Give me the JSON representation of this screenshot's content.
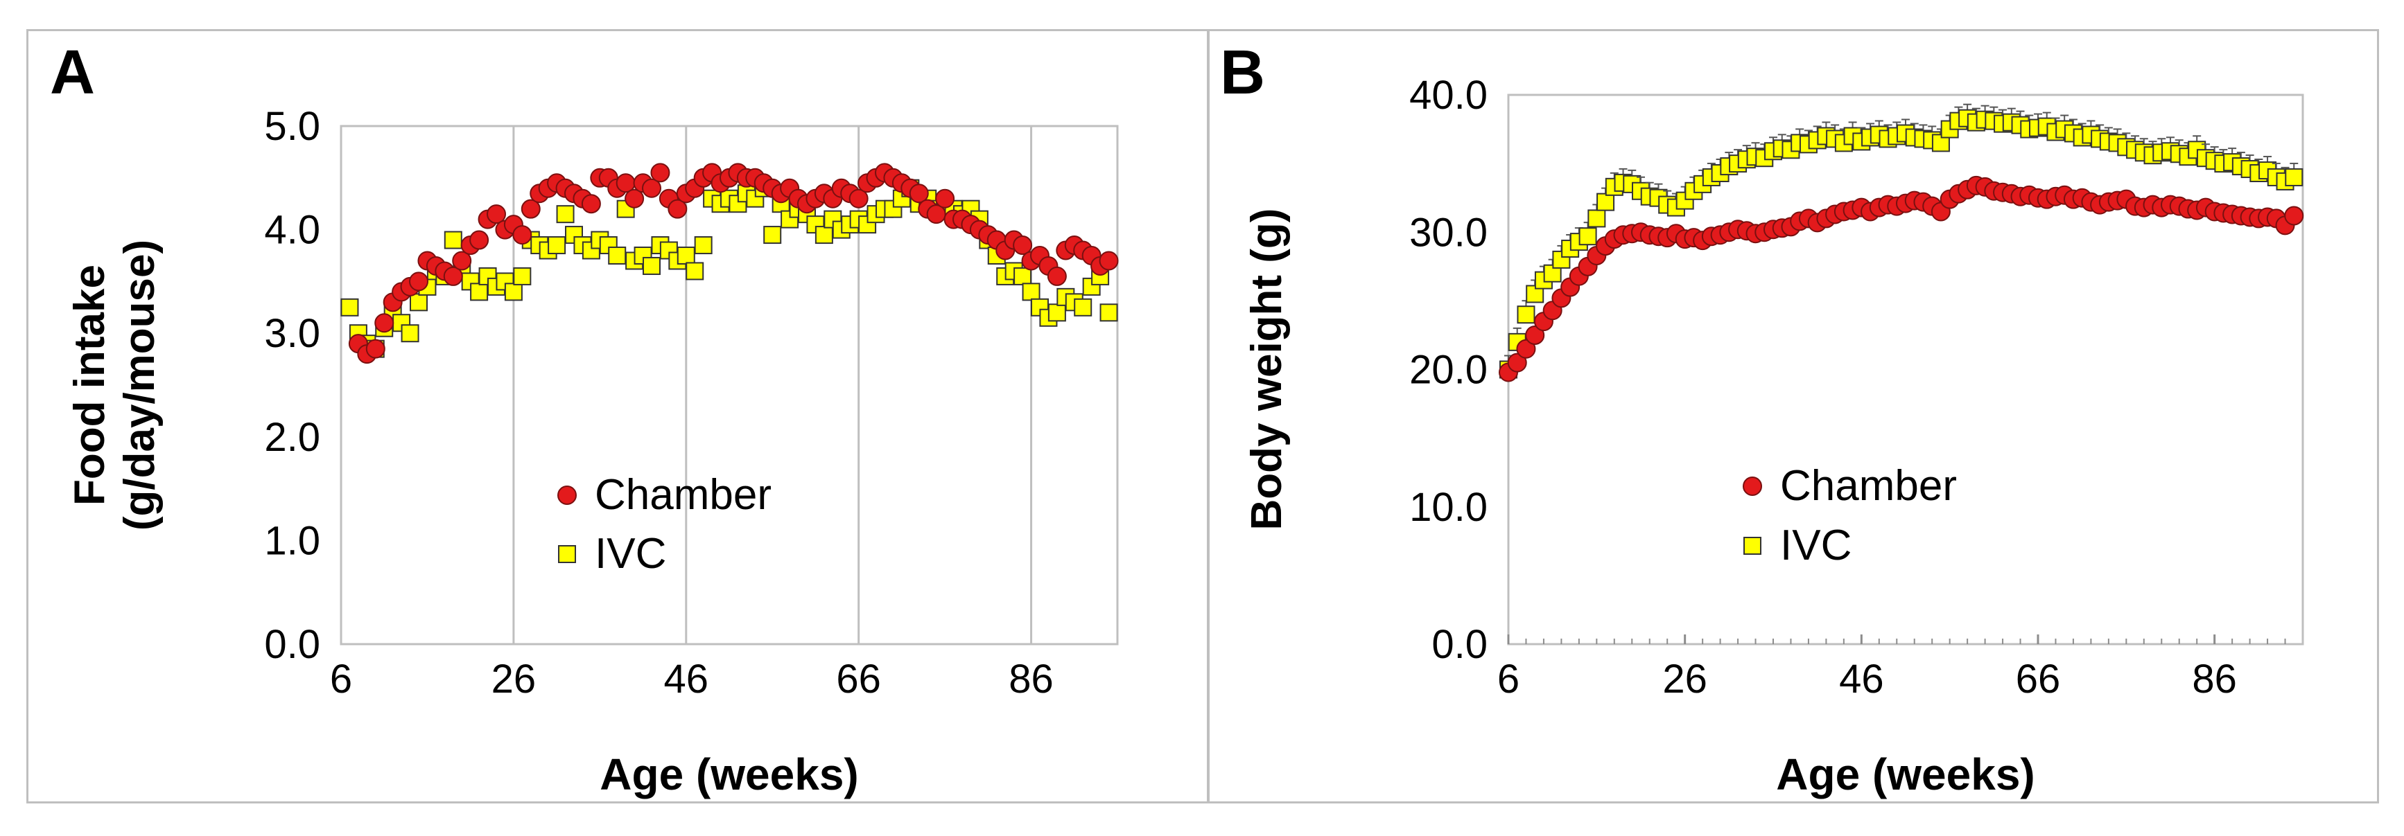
{
  "chart_data": [
    {
      "type": "scatter",
      "panel_label": "A",
      "xlabel": "Age (weeks)",
      "ylabel_line1": "Food intake",
      "ylabel_line2": "(g/day/mouse)",
      "xlim": [
        6,
        96
      ],
      "ylim": [
        0.0,
        5.0
      ],
      "xticks": [
        "6",
        "26",
        "46",
        "66",
        "86"
      ],
      "yticks": [
        "0.0",
        "1.0",
        "2.0",
        "3.0",
        "4.0",
        "5.0"
      ],
      "grid": "vertical",
      "legend_position": "center",
      "colors": {
        "chamber": "#e31a1c",
        "ivc": "#ffff00",
        "edge": "#333333",
        "grid": "#bfbfbf"
      },
      "series": [
        {
          "name": "Chamber",
          "marker": "circle",
          "x": [
            8,
            9,
            10,
            11,
            12,
            13,
            14,
            15,
            16,
            17,
            18,
            19,
            20,
            21,
            22,
            23,
            24,
            25,
            26,
            27,
            28,
            29,
            30,
            31,
            32,
            33,
            34,
            35,
            36,
            37,
            38,
            39,
            40,
            41,
            42,
            43,
            44,
            45,
            46,
            47,
            48,
            49,
            50,
            51,
            52,
            53,
            54,
            55,
            56,
            57,
            58,
            59,
            60,
            61,
            62,
            63,
            64,
            65,
            66,
            67,
            68,
            69,
            70,
            71,
            72,
            73,
            74,
            75,
            76,
            77,
            78,
            79,
            80,
            81,
            82,
            83,
            84,
            85,
            86,
            87,
            88,
            89,
            90,
            91,
            92,
            93,
            94,
            95
          ],
          "values": [
            2.9,
            2.8,
            2.85,
            3.1,
            3.3,
            3.4,
            3.45,
            3.5,
            3.7,
            3.65,
            3.6,
            3.55,
            3.7,
            3.85,
            3.9,
            4.1,
            4.15,
            4.0,
            4.05,
            3.95,
            4.2,
            4.35,
            4.4,
            4.45,
            4.4,
            4.35,
            4.3,
            4.25,
            4.5,
            4.5,
            4.4,
            4.45,
            4.3,
            4.45,
            4.4,
            4.55,
            4.3,
            4.2,
            4.35,
            4.4,
            4.5,
            4.55,
            4.45,
            4.5,
            4.55,
            4.5,
            4.5,
            4.45,
            4.4,
            4.35,
            4.4,
            4.3,
            4.25,
            4.3,
            4.35,
            4.3,
            4.4,
            4.35,
            4.3,
            4.45,
            4.5,
            4.55,
            4.5,
            4.45,
            4.4,
            4.35,
            4.2,
            4.15,
            4.3,
            4.1,
            4.1,
            4.05,
            4.0,
            3.95,
            3.9,
            3.8,
            3.9,
            3.85,
            3.7,
            3.75,
            3.65,
            3.55,
            3.8,
            3.85,
            3.8,
            3.75,
            3.65,
            3.7
          ]
        },
        {
          "name": "IVC",
          "marker": "square",
          "x": [
            7,
            8,
            9,
            10,
            11,
            12,
            13,
            14,
            15,
            16,
            17,
            18,
            19,
            20,
            21,
            22,
            23,
            24,
            25,
            26,
            27,
            28,
            29,
            30,
            31,
            32,
            33,
            34,
            35,
            36,
            37,
            38,
            39,
            40,
            41,
            42,
            43,
            44,
            45,
            46,
            47,
            48,
            49,
            50,
            51,
            52,
            53,
            54,
            55,
            56,
            57,
            58,
            59,
            60,
            61,
            62,
            63,
            64,
            65,
            66,
            67,
            68,
            69,
            70,
            71,
            72,
            73,
            74,
            75,
            76,
            77,
            78,
            79,
            80,
            81,
            82,
            83,
            84,
            85,
            86,
            87,
            88,
            89,
            90,
            91,
            92,
            93,
            94,
            95
          ],
          "values": [
            3.25,
            3.0,
            2.9,
            2.85,
            3.05,
            3.2,
            3.1,
            3.0,
            3.3,
            3.45,
            3.6,
            3.55,
            3.9,
            3.6,
            3.5,
            3.4,
            3.55,
            3.45,
            3.5,
            3.4,
            3.55,
            3.9,
            3.85,
            3.8,
            3.85,
            4.15,
            3.95,
            3.85,
            3.8,
            3.9,
            3.85,
            3.75,
            4.2,
            3.7,
            3.75,
            3.65,
            3.85,
            3.8,
            3.7,
            3.75,
            3.6,
            3.85,
            4.3,
            4.25,
            4.3,
            4.25,
            4.35,
            4.3,
            4.4,
            3.95,
            4.25,
            4.1,
            4.2,
            4.15,
            4.05,
            3.95,
            4.1,
            4.0,
            4.05,
            4.1,
            4.05,
            4.15,
            4.2,
            4.2,
            4.3,
            4.4,
            4.25,
            4.3,
            4.2,
            4.25,
            4.2,
            4.15,
            4.2,
            4.1,
            3.9,
            3.75,
            3.55,
            3.6,
            3.55,
            3.4,
            3.25,
            3.15,
            3.2,
            3.35,
            3.3,
            3.25,
            3.45,
            3.55,
            3.2
          ]
        }
      ]
    },
    {
      "type": "scatter",
      "panel_label": "B",
      "xlabel": "Age (weeks)",
      "ylabel_line1": "Body weight (g)",
      "xlim": [
        6,
        96
      ],
      "ylim": [
        0.0,
        40.0
      ],
      "xticks": [
        "6",
        "26",
        "46",
        "66",
        "86"
      ],
      "yticks": [
        "0.0",
        "10.0",
        "20.0",
        "30.0",
        "40.0"
      ],
      "grid": "none",
      "legend_position": "center",
      "error_bars": "IVC series, small upward bars",
      "colors": {
        "chamber": "#e31a1c",
        "ivc": "#ffff00",
        "edge": "#333333"
      },
      "series": [
        {
          "name": "Chamber",
          "marker": "circle",
          "x": [
            6,
            7,
            8,
            9,
            10,
            11,
            12,
            13,
            14,
            15,
            16,
            17,
            18,
            19,
            20,
            21,
            22,
            23,
            24,
            25,
            26,
            27,
            28,
            29,
            30,
            31,
            32,
            33,
            34,
            35,
            36,
            37,
            38,
            39,
            40,
            41,
            42,
            43,
            44,
            45,
            46,
            47,
            48,
            49,
            50,
            51,
            52,
            53,
            54,
            55,
            56,
            57,
            58,
            59,
            60,
            61,
            62,
            63,
            64,
            65,
            66,
            67,
            68,
            69,
            70,
            71,
            72,
            73,
            74,
            75,
            76,
            77,
            78,
            79,
            80,
            81,
            82,
            83,
            84,
            85,
            86,
            87,
            88,
            89,
            90,
            91,
            92,
            93,
            94,
            95
          ],
          "values": [
            19.8,
            20.5,
            21.5,
            22.5,
            23.5,
            24.3,
            25.2,
            26.0,
            26.8,
            27.5,
            28.3,
            29.0,
            29.5,
            29.8,
            29.9,
            30.0,
            29.8,
            29.7,
            29.6,
            29.9,
            29.5,
            29.6,
            29.4,
            29.7,
            29.8,
            30.0,
            30.2,
            30.1,
            29.9,
            30.0,
            30.2,
            30.3,
            30.4,
            30.8,
            31.0,
            30.7,
            31.0,
            31.3,
            31.5,
            31.6,
            31.8,
            31.5,
            31.8,
            32.0,
            31.9,
            32.1,
            32.3,
            32.2,
            31.9,
            31.5,
            32.4,
            32.8,
            33.1,
            33.4,
            33.3,
            33.0,
            32.9,
            32.8,
            32.6,
            32.7,
            32.5,
            32.4,
            32.6,
            32.7,
            32.4,
            32.5,
            32.2,
            32.0,
            32.2,
            32.3,
            32.4,
            31.9,
            31.8,
            32.0,
            31.8,
            32.0,
            31.9,
            31.7,
            31.6,
            31.8,
            31.5,
            31.4,
            31.3,
            31.2,
            31.1,
            31.0,
            31.1,
            31.0,
            30.5,
            31.2
          ]
        },
        {
          "name": "IVC",
          "marker": "square",
          "x": [
            6,
            7,
            8,
            9,
            10,
            11,
            12,
            13,
            14,
            15,
            16,
            17,
            18,
            19,
            20,
            21,
            22,
            23,
            24,
            25,
            26,
            27,
            28,
            29,
            30,
            31,
            32,
            33,
            34,
            35,
            36,
            37,
            38,
            39,
            40,
            41,
            42,
            43,
            44,
            45,
            46,
            47,
            48,
            49,
            50,
            51,
            52,
            53,
            54,
            55,
            56,
            57,
            58,
            59,
            60,
            61,
            62,
            63,
            64,
            65,
            66,
            67,
            68,
            69,
            70,
            71,
            72,
            73,
            74,
            75,
            76,
            77,
            78,
            79,
            80,
            81,
            82,
            83,
            84,
            85,
            86,
            87,
            88,
            89,
            90,
            91,
            92,
            93,
            94,
            95
          ],
          "values": [
            20.0,
            22.0,
            24.0,
            25.5,
            26.5,
            27.0,
            28.0,
            28.8,
            29.3,
            29.7,
            31.0,
            32.2,
            33.3,
            33.6,
            33.5,
            33.0,
            32.6,
            32.5,
            32.0,
            31.8,
            32.3,
            33.0,
            33.5,
            34.0,
            34.3,
            34.8,
            35.0,
            35.3,
            35.5,
            35.4,
            35.9,
            36.1,
            36.0,
            36.5,
            36.4,
            36.7,
            37.0,
            36.8,
            36.5,
            37.0,
            36.6,
            36.9,
            37.1,
            36.8,
            37.0,
            37.2,
            36.9,
            36.8,
            36.7,
            36.5,
            37.5,
            38.1,
            38.3,
            38.0,
            38.2,
            38.1,
            37.9,
            38.0,
            37.8,
            37.5,
            37.6,
            37.7,
            37.3,
            37.5,
            37.2,
            36.9,
            37.1,
            36.8,
            36.6,
            36.5,
            36.2,
            36.0,
            35.8,
            35.6,
            35.8,
            35.9,
            35.7,
            35.5,
            36.0,
            35.4,
            35.2,
            35.0,
            35.1,
            34.8,
            34.6,
            34.3,
            34.5,
            34.0,
            33.7,
            34.0
          ]
        }
      ]
    }
  ]
}
